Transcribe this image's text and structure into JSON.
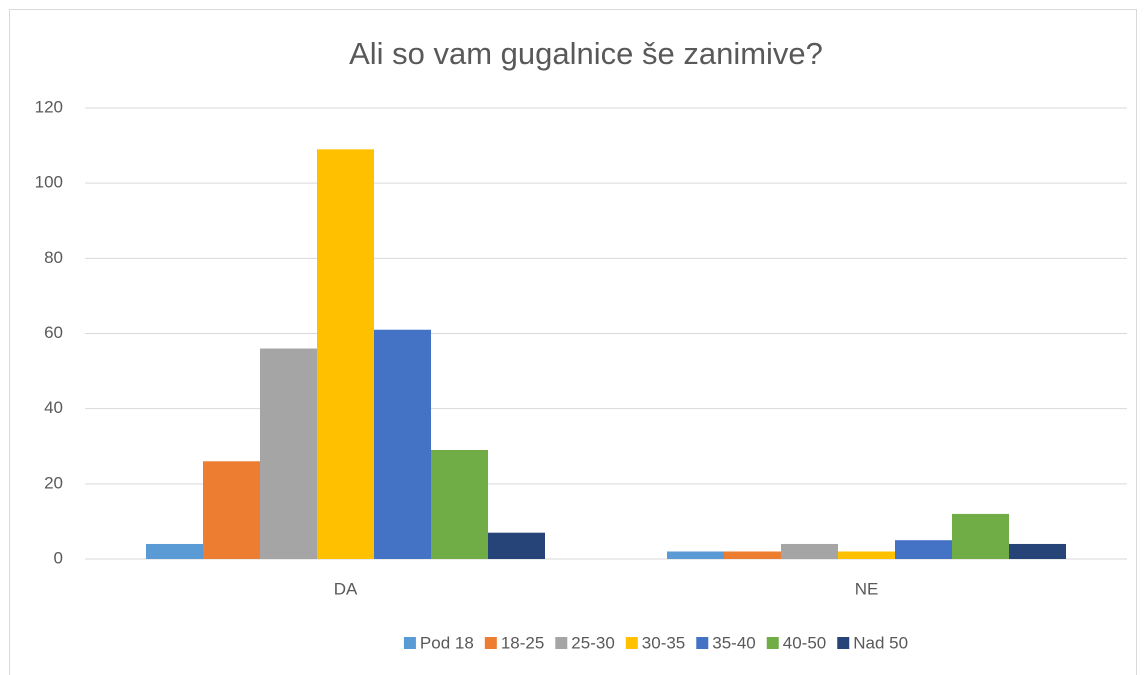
{
  "chart_data": {
    "type": "bar",
    "title": "Ali so vam gugalnice še zanimive?",
    "categories": [
      "DA",
      "NE"
    ],
    "series": [
      {
        "name": "Pod 18",
        "color": "#5b9bd5",
        "values": [
          4,
          2
        ]
      },
      {
        "name": "18-25",
        "color": "#ed7d31",
        "values": [
          26,
          2
        ]
      },
      {
        "name": "25-30",
        "color": "#a5a5a5",
        "values": [
          56,
          4
        ]
      },
      {
        "name": "30-35",
        "color": "#ffc000",
        "values": [
          109,
          2
        ]
      },
      {
        "name": "35-40",
        "color": "#4472c4",
        "values": [
          61,
          5
        ]
      },
      {
        "name": "40-50",
        "color": "#70ad47",
        "values": [
          29,
          12
        ]
      },
      {
        "name": "Nad 50",
        "color": "#264478",
        "values": [
          7,
          4
        ]
      }
    ],
    "ylim": [
      0,
      120
    ],
    "yticks": [
      0,
      20,
      40,
      60,
      80,
      100,
      120
    ],
    "grid": true,
    "legend": "bottom"
  }
}
